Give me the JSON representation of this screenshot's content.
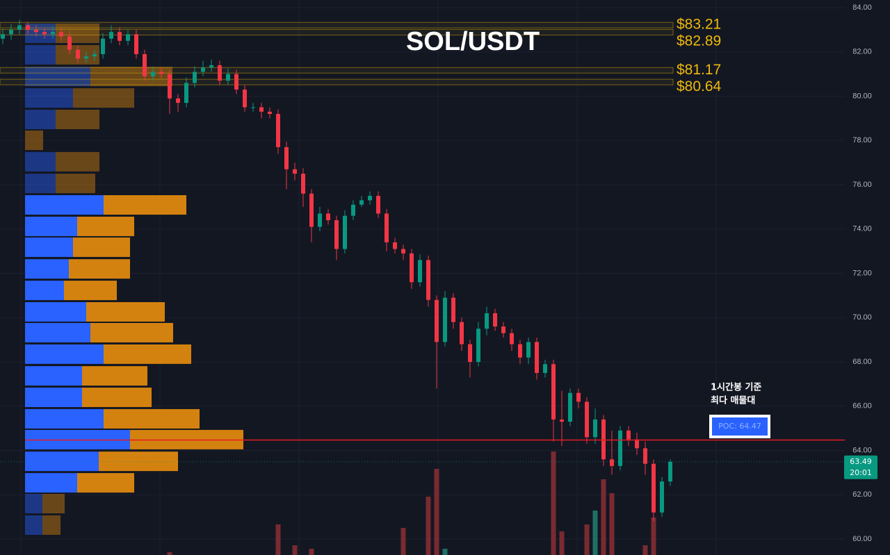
{
  "chart_data": {
    "type": "candlestick",
    "title": "SOL/USDT",
    "ylim": [
      59.28,
      84.345
    ],
    "yticks": [
      {
        "value": 84,
        "label": "84.00"
      },
      {
        "value": 82,
        "label": "82.00"
      },
      {
        "value": 80,
        "label": "80.00"
      },
      {
        "value": 78,
        "label": "78.00"
      },
      {
        "value": 76,
        "label": "76.00"
      },
      {
        "value": 74,
        "label": "74.00"
      },
      {
        "value": 72,
        "label": "72.00"
      },
      {
        "value": 70,
        "label": "70.00"
      },
      {
        "value": 68,
        "label": "68.00"
      },
      {
        "value": 66,
        "label": "66.00"
      },
      {
        "value": 64,
        "label": "64.00"
      },
      {
        "value": 62,
        "label": "62.00"
      },
      {
        "value": 60,
        "label": "60.00"
      }
    ],
    "up_color": "#089981",
    "down_color": "#f23645",
    "open": [
      82.6,
      82.8,
      83.0,
      83.2,
      83.0,
      82.9,
      82.8,
      82.9,
      82.7,
      82.1,
      81.7,
      81.8,
      81.9,
      82.6,
      82.9,
      82.5,
      82.8,
      81.9,
      80.9,
      81.1,
      81.0,
      79.9,
      79.7,
      80.6,
      81.1,
      81.3,
      81.4,
      80.7,
      81.0,
      80.3,
      79.5,
      79.5,
      79.3,
      79.2,
      77.7,
      76.7,
      76.5,
      75.6,
      74.1,
      74.7,
      74.4,
      73.1,
      74.6,
      75.1,
      75.3,
      75.5,
      74.7,
      73.4,
      73.1,
      72.9,
      71.6,
      72.6,
      70.8,
      68.9,
      70.9,
      69.8,
      68.8,
      68.0,
      69.5,
      70.2,
      69.6,
      69.3,
      68.8,
      68.2,
      68.9,
      67.5,
      67.9,
      65.4,
      65.3,
      66.6,
      66.2,
      64.6,
      65.4,
      63.6,
      63.3,
      64.9,
      64.5,
      64.1,
      63.4,
      61.2,
      62.6
    ],
    "high": [
      83.05,
      83.25,
      83.45,
      83.35,
      83.2,
      83.1,
      83.15,
      83.1,
      82.95,
      82.3,
      82.0,
      82.1,
      82.85,
      83.2,
      83.1,
      83.0,
      83.0,
      82.1,
      81.35,
      81.3,
      81.2,
      80.1,
      80.85,
      81.35,
      81.6,
      81.65,
      81.6,
      81.25,
      81.2,
      80.5,
      79.7,
      79.7,
      79.5,
      79.4,
      77.95,
      77.0,
      76.75,
      75.8,
      75.0,
      74.9,
      74.6,
      74.85,
      75.3,
      75.5,
      75.7,
      75.7,
      74.9,
      73.6,
      73.3,
      73.1,
      72.85,
      72.8,
      71.0,
      71.2,
      71.1,
      70.0,
      69.0,
      69.8,
      70.5,
      70.4,
      69.8,
      69.5,
      69.0,
      69.1,
      69.1,
      68.1,
      68.1,
      66.7,
      66.8,
      66.8,
      66.4,
      65.9,
      65.6,
      64.9,
      65.1,
      65.1,
      64.8,
      64.4,
      63.6,
      62.8,
      63.6
    ],
    "low": [
      82.35,
      82.55,
      82.8,
      82.8,
      82.7,
      82.6,
      82.6,
      82.5,
      81.9,
      81.5,
      81.5,
      81.6,
      81.7,
      82.4,
      82.3,
      82.3,
      81.7,
      80.7,
      80.7,
      80.8,
      79.2,
      79.3,
      79.5,
      80.4,
      80.9,
      81.1,
      80.5,
      80.5,
      80.1,
      79.3,
      79.3,
      79.0,
      79.0,
      77.4,
      75.8,
      76.2,
      75.0,
      73.4,
      73.9,
      74.2,
      72.6,
      72.9,
      74.4,
      75.0,
      75.1,
      74.5,
      73.0,
      72.9,
      72.6,
      71.3,
      71.4,
      70.5,
      66.8,
      68.7,
      69.5,
      68.5,
      67.3,
      67.8,
      69.2,
      69.4,
      69.1,
      68.5,
      67.9,
      67.9,
      67.2,
      67.3,
      64.4,
      64.2,
      65.1,
      65.9,
      64.3,
      64.3,
      63.3,
      62.9,
      63.1,
      64.2,
      63.8,
      62.9,
      60.8,
      61.0,
      62.4
    ],
    "close": [
      82.8,
      83.0,
      83.2,
      83.0,
      82.9,
      82.8,
      82.9,
      82.7,
      82.1,
      81.7,
      81.8,
      81.9,
      82.6,
      82.9,
      82.5,
      82.8,
      81.9,
      80.9,
      81.1,
      81.0,
      79.9,
      79.7,
      80.6,
      81.1,
      81.3,
      81.4,
      80.7,
      81.0,
      80.3,
      79.5,
      79.5,
      79.3,
      79.2,
      77.7,
      76.7,
      76.5,
      75.6,
      74.1,
      74.7,
      74.4,
      73.1,
      74.6,
      75.1,
      75.3,
      75.5,
      74.7,
      73.4,
      73.1,
      72.9,
      71.6,
      72.6,
      70.8,
      68.9,
      70.9,
      69.8,
      68.8,
      68.0,
      69.5,
      70.2,
      69.6,
      69.3,
      68.8,
      68.2,
      68.9,
      67.5,
      67.9,
      65.4,
      65.3,
      66.6,
      66.2,
      64.6,
      65.4,
      63.6,
      63.3,
      64.9,
      64.5,
      64.1,
      63.4,
      61.2,
      62.6,
      63.49
    ],
    "volume": [
      10,
      10,
      10,
      10,
      10,
      10,
      10,
      10,
      10,
      10,
      10,
      10,
      10,
      10,
      10,
      10,
      10,
      10,
      10,
      10,
      20,
      10,
      10,
      10,
      10,
      10,
      10,
      10,
      10,
      10,
      10,
      10,
      10,
      60,
      15,
      30,
      10,
      25,
      10,
      10,
      15,
      10,
      10,
      10,
      10,
      10,
      10,
      10,
      55,
      10,
      10,
      100,
      140,
      25,
      10,
      10,
      10,
      10,
      10,
      10,
      10,
      10,
      10,
      10,
      10,
      10,
      165,
      50,
      10,
      10,
      60,
      80,
      125,
      105,
      10,
      10,
      10,
      30,
      70,
      10,
      10
    ],
    "levels": [
      83.21,
      82.89,
      81.17,
      80.64
    ],
    "level_labels": [
      "$83.21",
      "$82.89",
      "$81.17",
      "$80.64"
    ],
    "level_color": "#f0b90b",
    "volume_profile": {
      "levels": [
        82.84,
        81.87,
        80.89,
        79.92,
        78.95,
        78.01,
        77.04,
        76.06,
        75.09,
        74.12,
        73.18,
        72.2,
        71.23,
        70.26,
        69.32,
        68.35,
        67.37,
        66.4,
        65.43,
        64.49,
        63.51,
        62.54,
        61.6,
        60.63
      ],
      "buy": [
        44,
        44,
        94,
        69,
        44,
        0,
        44,
        44,
        113,
        75,
        69,
        63,
        56,
        88,
        94,
        113,
        82,
        82,
        113,
        151,
        106,
        75,
        25,
        25
      ],
      "sell": [
        63,
        63,
        118,
        88,
        63,
        26,
        63,
        57,
        119,
        82,
        82,
        88,
        76,
        113,
        119,
        126,
        94,
        100,
        138,
        163,
        114,
        82,
        32,
        26
      ],
      "buy_color": "#2962ff",
      "sell_color": "#d4820f",
      "value_area": [
        62.0,
        75.6
      ]
    },
    "poc": {
      "value": 64.47,
      "label": "POC: 64.47"
    },
    "annotation": [
      "1시간봉 기준",
      "최다 매물대"
    ],
    "current_price": 63.49,
    "countdown": "20:01",
    "grid": true
  }
}
